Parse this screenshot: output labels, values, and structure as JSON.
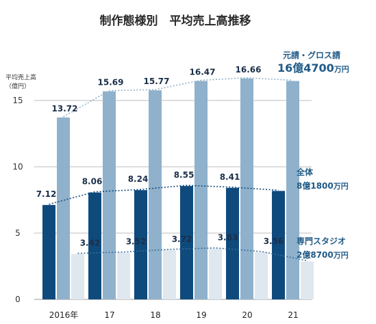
{
  "chart_data": {
    "type": "bar",
    "title": "制作態様別　平均売上高推移",
    "ylabel_line1": "平均売上高",
    "ylabel_line2": "（億円）",
    "ylim": [
      0,
      17
    ],
    "yticks": [
      0,
      5,
      10,
      15
    ],
    "categories": [
      "2016年",
      "17",
      "18",
      "19",
      "20",
      "21"
    ],
    "series": [
      {
        "key": "all",
        "values": [
          7.12,
          8.06,
          8.24,
          8.55,
          8.41,
          8.18
        ],
        "labels": [
          "7.12",
          "8.06",
          "8.24",
          "8.55",
          "8.41",
          ""
        ],
        "color": "#0f4a7d"
      },
      {
        "key": "prime",
        "values": [
          13.72,
          15.69,
          15.77,
          16.47,
          16.66,
          16.47
        ],
        "labels": [
          "13.72",
          "15.69",
          "15.77",
          "16.47",
          "16.66",
          ""
        ],
        "color": "#8fb1cb"
      },
      {
        "key": "studio",
        "values": [
          3.42,
          3.52,
          3.72,
          3.83,
          3.56,
          2.87
        ],
        "labels": [
          "3.42",
          "3.52",
          "3.72",
          "3.83",
          "3.56",
          ""
        ],
        "color": "#dfe7ef"
      }
    ],
    "trend_colors": {
      "prime": "#8fb1cb",
      "all": "#0f4a7d",
      "studio": "#3a6d9b"
    },
    "annotations": {
      "prime": {
        "name": "元請・グロス請",
        "value": "16億4700",
        "unit": "万円"
      },
      "all": {
        "name": "全体",
        "value": "8億1800",
        "unit": "万円"
      },
      "studio": {
        "name": "専門スタジオ",
        "value": "2億8700",
        "unit": "万円"
      }
    },
    "grid": true
  }
}
